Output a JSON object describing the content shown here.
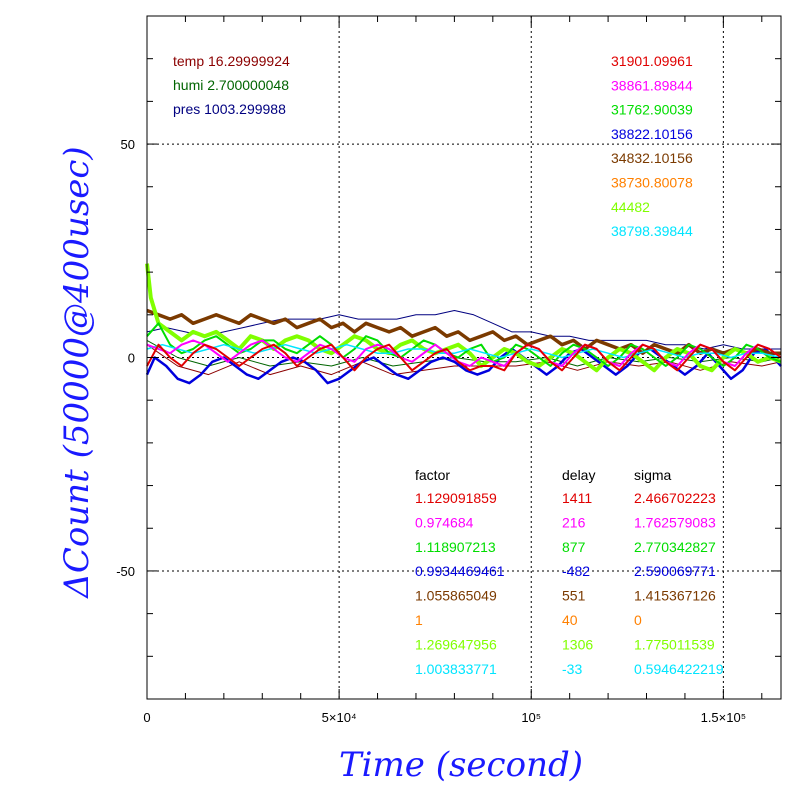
{
  "chart_data": {
    "type": "line",
    "xlabel": "Time (second)",
    "ylabel": "ΔCount (50000@400usec)",
    "xlim": [
      0,
      165000
    ],
    "ylim": [
      -80,
      80
    ],
    "grid": true,
    "x_ticks": [
      {
        "value": 0,
        "label": "0"
      },
      {
        "value": 50000,
        "label": "5×10⁴"
      },
      {
        "value": 100000,
        "label": "10⁵"
      },
      {
        "value": 150000,
        "label": "1.5×10⁵"
      }
    ],
    "y_ticks": [
      {
        "value": -50,
        "label": "-50"
      },
      {
        "value": 0,
        "label": "0"
      },
      {
        "value": 50,
        "label": "50"
      }
    ],
    "env": [
      {
        "text": "temp 16.29999924",
        "color": "#8b0000"
      },
      {
        "text": "humi 2.700000048",
        "color": "#006400"
      },
      {
        "text": "pres 1003.299988",
        "color": "#000080"
      }
    ],
    "baselines": [
      {
        "text": "31901.09961",
        "color": "#e00000"
      },
      {
        "text": "38861.89844",
        "color": "#ff00ff"
      },
      {
        "text": "31762.90039",
        "color": "#00dd00"
      },
      {
        "text": "38822.10156",
        "color": "#0000dd"
      },
      {
        "text": "34832.10156",
        "color": "#7b3a00"
      },
      {
        "text": "38730.80078",
        "color": "#ff8000"
      },
      {
        "text": "44482",
        "color": "#80ff00"
      },
      {
        "text": "38798.39844",
        "color": "#00e5ff"
      }
    ],
    "table": {
      "headers": [
        "factor",
        "delay",
        "sigma"
      ],
      "rows": [
        {
          "factor": "1.129091859",
          "delay": "1411",
          "sigma": "2.466702223",
          "color": "#e00000"
        },
        {
          "factor": "0.974684",
          "delay": "216",
          "sigma": "1.762579083",
          "color": "#ff00ff"
        },
        {
          "factor": "1.118907213",
          "delay": "877",
          "sigma": "2.770342827",
          "color": "#00dd00"
        },
        {
          "factor": "0.9934469461",
          "delay": "-482",
          "sigma": "2.590069771",
          "color": "#0000dd"
        },
        {
          "factor": "1.055865049",
          "delay": "551",
          "sigma": "1.415367126",
          "color": "#7b3a00"
        },
        {
          "factor": "1",
          "delay": "40",
          "sigma": "0",
          "color": "#ff8000"
        },
        {
          "factor": "1.269647956",
          "delay": "1306",
          "sigma": "1.775011539",
          "color": "#80ff00"
        },
        {
          "factor": "1.003833771",
          "delay": "-33",
          "sigma": "0.5946422219",
          "color": "#00e5ff"
        }
      ]
    },
    "series": [
      {
        "color": "#8b0000",
        "width": 1,
        "x": [
          0,
          8000,
          16000,
          24000,
          32000,
          40000,
          48000,
          56000,
          64000,
          72000,
          80000,
          88000,
          96000,
          104000,
          112000,
          120000,
          128000,
          136000,
          144000,
          152000,
          160000,
          165000
        ],
        "y": [
          3,
          -2,
          -4,
          -1,
          -4,
          -2,
          -4,
          -1,
          -4,
          -3,
          -2,
          -2,
          -2,
          -1,
          -3,
          -1,
          -2,
          -1,
          -3,
          -1,
          -2,
          -1
        ]
      },
      {
        "color": "#006400",
        "width": 1,
        "x": [
          0,
          8000,
          16000,
          24000,
          32000,
          40000,
          48000,
          56000,
          64000,
          72000,
          80000,
          88000,
          96000,
          104000,
          112000,
          120000,
          128000,
          136000,
          144000,
          152000,
          160000,
          165000
        ],
        "y": [
          4,
          0,
          -2,
          0,
          -2,
          -1,
          -2,
          0,
          -2,
          -1,
          0,
          -1,
          -1,
          0,
          -2,
          0,
          -1,
          0,
          -1,
          0,
          -1,
          0
        ]
      },
      {
        "color": "#000080",
        "width": 1,
        "x": [
          0,
          5000,
          10000,
          15000,
          20000,
          25000,
          30000,
          35000,
          40000,
          45000,
          50000,
          55000,
          60000,
          65000,
          70000,
          75000,
          80000,
          85000,
          90000,
          95000,
          100000,
          105000,
          110000,
          115000,
          120000,
          125000,
          130000,
          135000,
          140000,
          145000,
          150000,
          155000,
          160000,
          165000
        ],
        "y": [
          6,
          7,
          6,
          5,
          6,
          7,
          8,
          9,
          9,
          9,
          10,
          9,
          9,
          9,
          10,
          10,
          11,
          10,
          8,
          6,
          6,
          5,
          5,
          4,
          4,
          4,
          4,
          3,
          3,
          2,
          3,
          2,
          2,
          2
        ]
      },
      {
        "color": "#0000dd",
        "width": 2.5,
        "x": [
          0,
          2000,
          5000,
          8000,
          11000,
          14000,
          17000,
          20000,
          23000,
          26000,
          29000,
          32000,
          35000,
          38000,
          41000,
          44000,
          47000,
          50000,
          53000,
          56000,
          59000,
          62000,
          65000,
          68000,
          71000,
          74000,
          77000,
          80000,
          83000,
          86000,
          89000,
          92000,
          95000,
          98000,
          101000,
          104000,
          107000,
          110000,
          113000,
          116000,
          119000,
          122000,
          125000,
          128000,
          131000,
          134000,
          137000,
          140000,
          143000,
          146000,
          149000,
          152000,
          155000,
          158000,
          161000,
          165000
        ],
        "y": [
          -4,
          0,
          -2,
          -5,
          -6,
          -4,
          -1,
          0,
          -2,
          -4,
          -5,
          -3,
          -1,
          0,
          -1,
          -3,
          -6,
          -5,
          -3,
          -1,
          0,
          -2,
          -4,
          -5,
          -3,
          -1,
          0,
          -1,
          -3,
          -4,
          -3,
          0,
          2,
          0,
          -2,
          -4,
          -2,
          1,
          2,
          0,
          -2,
          -4,
          -2,
          1,
          2,
          0,
          -2,
          -4,
          -2,
          1,
          -2,
          -5,
          -3,
          1,
          2,
          -2
        ]
      },
      {
        "color": "#7b3a00",
        "width": 3.5,
        "x": [
          0,
          3000,
          6000,
          9000,
          12000,
          15000,
          18000,
          21000,
          24000,
          27000,
          30000,
          33000,
          36000,
          39000,
          42000,
          45000,
          48000,
          51000,
          54000,
          57000,
          60000,
          63000,
          66000,
          69000,
          72000,
          75000,
          78000,
          81000,
          84000,
          87000,
          90000,
          93000,
          96000,
          99000,
          102000,
          105000,
          108000,
          111000,
          114000,
          117000,
          120000,
          123000,
          126000,
          129000,
          132000,
          135000,
          138000,
          141000,
          144000,
          147000,
          150000,
          153000,
          156000,
          159000,
          162000,
          165000
        ],
        "y": [
          11,
          10,
          9,
          10,
          8,
          9,
          10,
          9,
          8,
          10,
          9,
          8,
          9,
          7,
          8,
          9,
          7,
          8,
          6,
          8,
          7,
          6,
          7,
          5,
          6,
          7,
          5,
          6,
          4,
          5,
          6,
          4,
          5,
          3,
          4,
          5,
          3,
          4,
          2,
          4,
          3,
          2,
          3,
          1,
          3,
          2,
          1,
          3,
          1,
          2,
          1,
          2,
          1,
          2,
          1,
          1
        ]
      },
      {
        "color": "#80ff00",
        "width": 4,
        "x": [
          0,
          1000,
          3000,
          6000,
          9000,
          12000,
          15000,
          18000,
          21000,
          24000,
          27000,
          30000,
          33000,
          36000,
          39000,
          42000,
          45000,
          48000,
          51000,
          54000,
          57000,
          60000,
          63000,
          66000,
          69000,
          72000,
          75000,
          78000,
          81000,
          84000,
          87000,
          90000,
          93000,
          96000,
          99000,
          102000,
          105000,
          108000,
          111000,
          114000,
          117000,
          120000,
          123000,
          126000,
          129000,
          132000,
          135000,
          138000,
          141000,
          144000,
          147000,
          150000,
          153000,
          156000,
          159000,
          162000,
          165000
        ],
        "y": [
          22,
          14,
          8,
          6,
          4,
          6,
          5,
          6,
          4,
          2,
          5,
          4,
          2,
          4,
          5,
          4,
          2,
          1,
          3,
          5,
          4,
          2,
          1,
          3,
          4,
          2,
          1,
          2,
          3,
          1,
          -2,
          0,
          2,
          1,
          -1,
          -2,
          0,
          2,
          1,
          -1,
          -3,
          0,
          2,
          1,
          -1,
          -3,
          0,
          2,
          1,
          -2,
          -3,
          0,
          2,
          1,
          -1,
          0,
          -1
        ]
      },
      {
        "color": "#00dd00",
        "width": 2,
        "x": [
          0,
          3000,
          6000,
          9000,
          12000,
          15000,
          18000,
          21000,
          24000,
          27000,
          30000,
          33000,
          36000,
          39000,
          42000,
          45000,
          48000,
          51000,
          54000,
          57000,
          60000,
          63000,
          66000,
          69000,
          72000,
          75000,
          78000,
          81000,
          84000,
          87000,
          90000,
          93000,
          96000,
          99000,
          102000,
          105000,
          108000,
          111000,
          114000,
          117000,
          120000,
          123000,
          126000,
          129000,
          132000,
          135000,
          138000,
          141000,
          144000,
          147000,
          150000,
          153000,
          156000,
          159000,
          162000,
          165000
        ],
        "y": [
          5,
          8,
          3,
          1,
          2,
          4,
          5,
          3,
          1,
          2,
          4,
          4,
          2,
          1,
          3,
          5,
          3,
          0,
          2,
          5,
          4,
          1,
          0,
          2,
          4,
          3,
          1,
          0,
          2,
          3,
          -1,
          0,
          3,
          2,
          0,
          -2,
          1,
          3,
          2,
          0,
          -2,
          0,
          3,
          2,
          0,
          -2,
          0,
          3,
          2,
          0,
          -2,
          0,
          3,
          2,
          0,
          -1
        ]
      },
      {
        "color": "#00e5ff",
        "width": 1.5,
        "x": [
          0,
          4000,
          8000,
          12000,
          16000,
          20000,
          24000,
          28000,
          32000,
          36000,
          40000,
          44000,
          48000,
          52000,
          56000,
          60000,
          64000,
          68000,
          72000,
          76000,
          80000,
          84000,
          88000,
          92000,
          96000,
          100000,
          104000,
          108000,
          112000,
          116000,
          120000,
          124000,
          128000,
          132000,
          136000,
          140000,
          144000,
          148000,
          152000,
          156000,
          160000,
          165000
        ],
        "y": [
          2,
          3,
          2,
          1,
          2,
          3,
          2,
          1,
          2,
          3,
          2,
          1,
          2,
          3,
          2,
          1,
          1,
          2,
          2,
          1,
          1,
          2,
          1,
          0,
          1,
          2,
          1,
          0,
          1,
          2,
          1,
          0,
          1,
          2,
          1,
          0,
          1,
          1,
          0,
          1,
          1,
          0
        ]
      },
      {
        "color": "#ff00ff",
        "width": 2,
        "x": [
          0,
          3000,
          6000,
          9000,
          12000,
          15000,
          18000,
          21000,
          24000,
          27000,
          30000,
          33000,
          36000,
          39000,
          42000,
          45000,
          48000,
          51000,
          54000,
          57000,
          60000,
          63000,
          66000,
          69000,
          72000,
          75000,
          78000,
          81000,
          84000,
          87000,
          90000,
          93000,
          96000,
          99000,
          102000,
          105000,
          108000,
          111000,
          114000,
          117000,
          120000,
          123000,
          126000,
          129000,
          132000,
          135000,
          138000,
          141000,
          144000,
          147000,
          150000,
          153000,
          156000,
          159000,
          162000,
          165000
        ],
        "y": [
          3,
          2,
          1,
          3,
          4,
          3,
          1,
          -1,
          1,
          3,
          4,
          2,
          0,
          -1,
          1,
          3,
          2,
          0,
          -1,
          2,
          3,
          2,
          0,
          -1,
          1,
          3,
          1,
          -1,
          -2,
          0,
          -1,
          -2,
          1,
          3,
          2,
          -1,
          -2,
          1,
          3,
          2,
          -1,
          -2,
          1,
          3,
          2,
          -1,
          -2,
          1,
          3,
          2,
          -1,
          -2,
          1,
          3,
          2,
          0
        ]
      },
      {
        "color": "#e00000",
        "width": 2,
        "x": [
          0,
          3000,
          6000,
          9000,
          12000,
          15000,
          18000,
          21000,
          24000,
          27000,
          30000,
          33000,
          36000,
          39000,
          42000,
          45000,
          48000,
          51000,
          54000,
          57000,
          60000,
          63000,
          66000,
          69000,
          72000,
          75000,
          78000,
          81000,
          84000,
          87000,
          90000,
          93000,
          96000,
          99000,
          102000,
          105000,
          108000,
          111000,
          114000,
          117000,
          120000,
          123000,
          126000,
          129000,
          132000,
          135000,
          138000,
          141000,
          144000,
          147000,
          150000,
          153000,
          156000,
          159000,
          162000,
          165000
        ],
        "y": [
          -2,
          3,
          0,
          -2,
          1,
          3,
          2,
          0,
          -2,
          0,
          2,
          3,
          1,
          -2,
          0,
          2,
          3,
          0,
          -3,
          0,
          2,
          3,
          0,
          -3,
          -1,
          1,
          2,
          -1,
          -3,
          -2,
          -2,
          -3,
          1,
          3,
          2,
          -1,
          -3,
          0,
          3,
          2,
          -1,
          -3,
          0,
          3,
          2,
          -1,
          -3,
          0,
          3,
          2,
          -1,
          -3,
          0,
          3,
          2,
          0
        ]
      }
    ]
  }
}
